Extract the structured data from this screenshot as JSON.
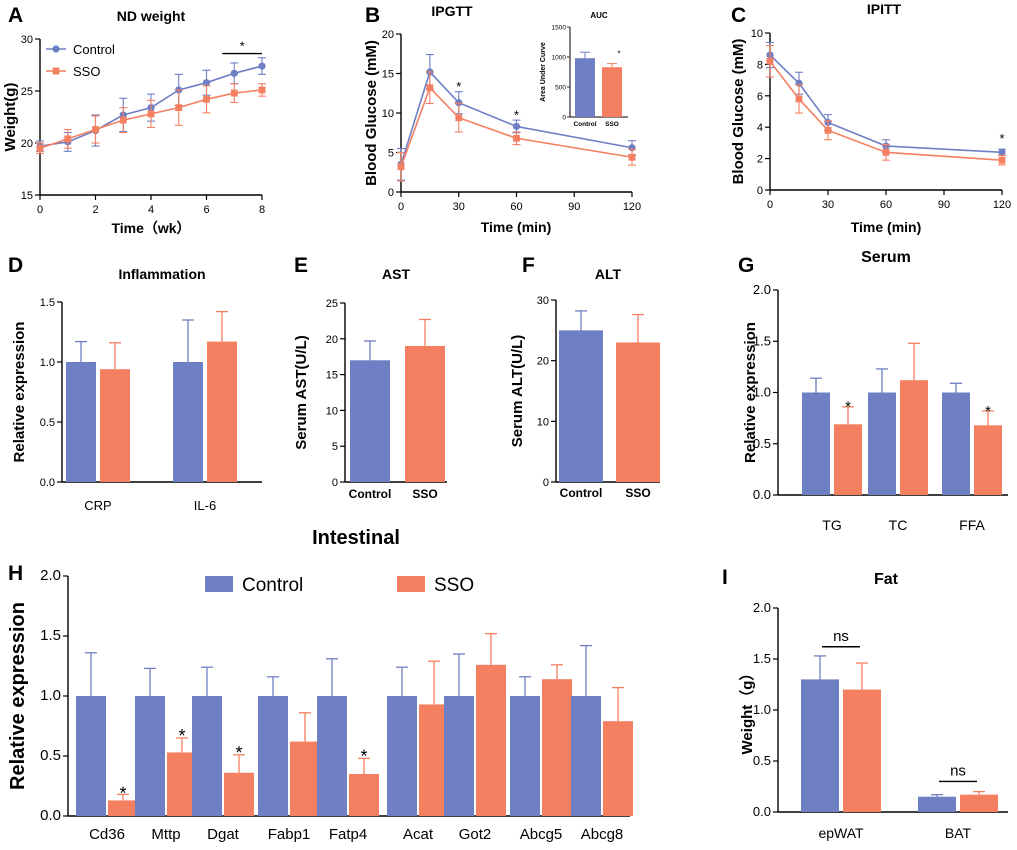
{
  "figure": {
    "colors": {
      "control": "#6f7fc4",
      "sso": "#f47f61",
      "axis": "#000000"
    },
    "legend": {
      "control": "Control",
      "sso": "SSO"
    }
  },
  "chart_data": [
    {
      "id": "A",
      "type": "line",
      "panel_letter": "A",
      "title": "ND weight",
      "xlabel": "Time（wk）",
      "ylabel": "Weight(g)",
      "xlim": [
        0,
        8
      ],
      "ylim": [
        15,
        30
      ],
      "xticks": [
        0,
        2,
        4,
        6,
        8
      ],
      "yticks": [
        15,
        20,
        25,
        30
      ],
      "legend": [
        "Control",
        "SSO"
      ],
      "x": [
        0,
        1,
        2,
        3,
        4,
        5,
        6,
        7,
        8
      ],
      "series": [
        {
          "name": "Control",
          "values": [
            19.7,
            20.1,
            21.2,
            22.7,
            23.4,
            25.1,
            25.8,
            26.7,
            27.4
          ],
          "err": [
            0.5,
            0.9,
            1.5,
            1.6,
            1.3,
            1.5,
            1.2,
            1.0,
            0.8
          ]
        },
        {
          "name": "SSO",
          "values": [
            19.5,
            20.4,
            21.3,
            22.2,
            22.8,
            23.4,
            24.2,
            24.8,
            25.1
          ],
          "err": [
            0.5,
            0.9,
            1.3,
            1.2,
            1.3,
            1.7,
            1.3,
            0.9,
            0.6
          ]
        }
      ],
      "sig": {
        "label": "*",
        "x_from": 7,
        "x_to": 8,
        "y": 28.6
      }
    },
    {
      "id": "B",
      "type": "line",
      "panel_letter": "B",
      "title": "IPGTT",
      "xlabel": "Time (min)",
      "ylabel": "Blood Glucose (mM)",
      "xlim": [
        0,
        120
      ],
      "ylim": [
        0,
        20
      ],
      "xticks": [
        0,
        30,
        60,
        90,
        120
      ],
      "yticks": [
        0,
        5,
        10,
        15,
        20
      ],
      "x": [
        0,
        15,
        30,
        60,
        120
      ],
      "series": [
        {
          "name": "Control",
          "values": [
            3.5,
            15.2,
            11.3,
            8.3,
            5.6
          ],
          "err": [
            2.0,
            2.2,
            1.4,
            0.8,
            0.9
          ]
        },
        {
          "name": "SSO",
          "values": [
            3.2,
            13.2,
            9.4,
            6.8,
            4.4
          ],
          "err": [
            1.8,
            2.0,
            1.8,
            0.8,
            1.0
          ]
        }
      ],
      "annotations": [
        {
          "label": "*",
          "x": 30,
          "y": 12.8
        },
        {
          "label": "*",
          "x": 60,
          "y": 9.2
        }
      ],
      "inset": {
        "type": "bar",
        "title": "AUC",
        "ylabel": "Area Under Curve",
        "ylim": [
          0,
          1500
        ],
        "yticks": [
          0,
          500,
          1000,
          1500
        ],
        "categories": [
          "Control",
          "SSO"
        ],
        "values": [
          980,
          830
        ],
        "err": [
          100,
          60
        ],
        "sig": [
          {
            "label": "*",
            "category": "SSO",
            "y": 1010
          }
        ]
      }
    },
    {
      "id": "C",
      "type": "line",
      "panel_letter": "C",
      "title": "IPITT",
      "xlabel": "Time (min)",
      "ylabel": "Blood Glucose (mM)",
      "xlim": [
        0,
        120
      ],
      "ylim": [
        0,
        10
      ],
      "xticks": [
        0,
        30,
        60,
        90,
        120
      ],
      "yticks": [
        0,
        2,
        4,
        6,
        8,
        10
      ],
      "x": [
        0,
        15,
        30,
        60,
        120
      ],
      "series": [
        {
          "name": "Control",
          "values": [
            8.6,
            6.8,
            4.3,
            2.8,
            2.4
          ],
          "err": [
            0.8,
            0.7,
            0.5,
            0.4,
            0.2
          ]
        },
        {
          "name": "SSO",
          "values": [
            8.2,
            5.8,
            3.8,
            2.4,
            1.9
          ],
          "err": [
            1.0,
            0.9,
            0.6,
            0.5,
            0.3
          ]
        }
      ],
      "annotations": [
        {
          "label": "*",
          "x": 120,
          "y": 3.0
        }
      ]
    },
    {
      "id": "D",
      "type": "bar",
      "panel_letter": "D",
      "title": "Inflammation",
      "xlabel": "",
      "ylabel": "Relative expression",
      "ylim": [
        0,
        1.5
      ],
      "yticks": [
        0.0,
        0.5,
        1.0,
        1.5
      ],
      "categories": [
        "CRP",
        "IL-6"
      ],
      "series": [
        {
          "name": "Control",
          "values": [
            1.0,
            1.0
          ],
          "err": [
            0.17,
            0.35
          ]
        },
        {
          "name": "SSO",
          "values": [
            0.94,
            1.17
          ],
          "err": [
            0.22,
            0.25
          ]
        }
      ]
    },
    {
      "id": "E",
      "type": "bar",
      "panel_letter": "E",
      "title": "AST",
      "ylabel": "Serum AST(U/L)",
      "ylim": [
        0,
        25
      ],
      "yticks": [
        0,
        5,
        10,
        15,
        20,
        25
      ],
      "categories": [
        "Control",
        "SSO"
      ],
      "values": [
        17.0,
        19.0
      ],
      "err": [
        2.7,
        3.7
      ]
    },
    {
      "id": "F",
      "type": "bar",
      "panel_letter": "F",
      "title": "ALT",
      "ylabel": "Serum ALT(U/L)",
      "ylim": [
        0,
        30
      ],
      "yticks": [
        0,
        10,
        20,
        30
      ],
      "categories": [
        "Control",
        "SSO"
      ],
      "values": [
        25.0,
        23.0
      ],
      "err": [
        3.2,
        4.6
      ]
    },
    {
      "id": "G",
      "type": "bar",
      "panel_letter": "G",
      "title": "Serum",
      "ylabel": "Relative expression",
      "ylim": [
        0,
        2.0
      ],
      "yticks": [
        0.0,
        0.5,
        1.0,
        1.5,
        2.0
      ],
      "categories": [
        "TG",
        "TC",
        "FFA"
      ],
      "series": [
        {
          "name": "Control",
          "values": [
            1.0,
            1.0,
            1.0
          ],
          "err": [
            0.14,
            0.23,
            0.09
          ]
        },
        {
          "name": "SSO",
          "values": [
            0.69,
            1.12,
            0.68
          ],
          "err": [
            0.17,
            0.36,
            0.14
          ]
        }
      ],
      "sig": [
        {
          "label": "*",
          "category": "TG",
          "y": 0.91
        },
        {
          "label": "*",
          "category": "FFA",
          "y": 0.87
        }
      ]
    },
    {
      "id": "H",
      "type": "bar",
      "panel_letter": "H",
      "title": "Intestinal",
      "ylabel": "Relative expression",
      "ylim": [
        0,
        2.0
      ],
      "yticks": [
        0.0,
        0.5,
        1.0,
        1.5,
        2.0
      ],
      "legend": [
        "Control",
        "SSO"
      ],
      "categories": [
        "Cd36",
        "Mttp",
        "Dgat",
        "Fabp1",
        "Fatp4",
        "Acat",
        "Got2",
        "Abcg5",
        "Abcg8"
      ],
      "series": [
        {
          "name": "Control",
          "values": [
            1.0,
            1.0,
            1.0,
            1.0,
            1.0,
            1.0,
            1.0,
            1.0,
            1.0
          ],
          "err": [
            0.36,
            0.23,
            0.24,
            0.16,
            0.31,
            0.24,
            0.35,
            0.16,
            0.42
          ]
        },
        {
          "name": "SSO",
          "values": [
            0.13,
            0.53,
            0.36,
            0.62,
            0.35,
            0.93,
            1.26,
            1.14,
            0.79
          ],
          "err": [
            0.05,
            0.12,
            0.15,
            0.24,
            0.13,
            0.36,
            0.26,
            0.12,
            0.28
          ]
        }
      ],
      "sig": [
        {
          "label": "*",
          "category": "Cd36",
          "y": 0.22
        },
        {
          "label": "*",
          "category": "Mttp",
          "y": 0.7
        },
        {
          "label": "*",
          "category": "Dgat",
          "y": 0.56
        },
        {
          "label": "*",
          "category": "Fatp4",
          "y": 0.53
        }
      ]
    },
    {
      "id": "I",
      "type": "bar",
      "panel_letter": "I",
      "title": "Fat",
      "ylabel": "Weight（g）",
      "ylim": [
        0,
        2.0
      ],
      "yticks": [
        0.0,
        0.5,
        1.0,
        1.5,
        2.0
      ],
      "categories": [
        "epWAT",
        "BAT"
      ],
      "series": [
        {
          "name": "Control",
          "values": [
            1.3,
            0.15
          ],
          "err": [
            0.23,
            0.02
          ]
        },
        {
          "name": "SSO",
          "values": [
            1.2,
            0.17
          ],
          "err": [
            0.26,
            0.03
          ]
        }
      ],
      "brackets": [
        {
          "label": "ns",
          "category": "epWAT",
          "y": 1.62
        },
        {
          "label": "ns",
          "category": "BAT",
          "y": 0.3
        }
      ]
    }
  ]
}
